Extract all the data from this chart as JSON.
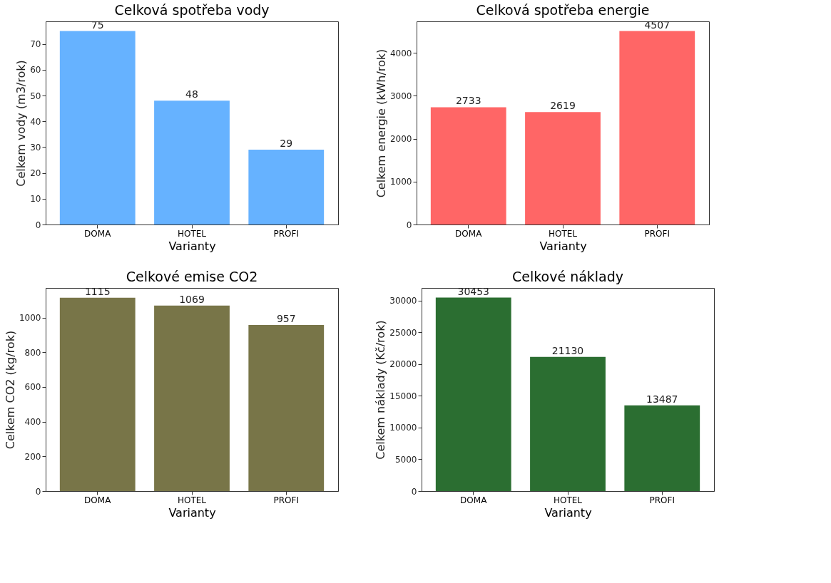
{
  "chart_data": [
    {
      "type": "bar",
      "title": "Celková spotřeba vody",
      "xlabel": "Varianty",
      "ylabel": "Celkem vody (m3/rok)",
      "categories": [
        "DOMA",
        "HOTEL",
        "PROFI"
      ],
      "values": [
        75,
        48,
        29
      ],
      "color": "#66b2ff",
      "ylim": [
        0,
        78.75
      ],
      "yticks": [
        0,
        10,
        20,
        30,
        40,
        50,
        60,
        70
      ],
      "grid": false,
      "data_labels": true
    },
    {
      "type": "bar",
      "title": "Celková spotřeba energie",
      "xlabel": "Varianty",
      "ylabel": "Celkem energie (kWh/rok)",
      "categories": [
        "DOMA",
        "HOTEL",
        "PROFI"
      ],
      "values": [
        2733,
        2619,
        4507
      ],
      "color": "#ff6666",
      "ylim": [
        0,
        4732
      ],
      "yticks": [
        0,
        1000,
        2000,
        3000,
        4000
      ],
      "grid": false,
      "data_labels": true
    },
    {
      "type": "bar",
      "title": "Celkové emise CO2",
      "xlabel": "Varianty",
      "ylabel": "Celkem CO2 (kg/rok)",
      "categories": [
        "DOMA",
        "HOTEL",
        "PROFI"
      ],
      "values": [
        1115,
        1069,
        957
      ],
      "color": "#787548",
      "ylim": [
        0,
        1171
      ],
      "yticks": [
        0,
        200,
        400,
        600,
        800,
        1000
      ],
      "grid": false,
      "data_labels": true
    },
    {
      "type": "bar",
      "title": "Celkové náklady",
      "xlabel": "Varianty",
      "ylabel": "Celkem náklady (Kč/rok)",
      "categories": [
        "DOMA",
        "HOTEL",
        "PROFI"
      ],
      "values": [
        30453,
        21130,
        13487
      ],
      "color": "#2b6e31",
      "ylim": [
        0,
        31976
      ],
      "yticks": [
        0,
        5000,
        10000,
        15000,
        20000,
        25000,
        30000
      ],
      "grid": false,
      "data_labels": true
    }
  ]
}
